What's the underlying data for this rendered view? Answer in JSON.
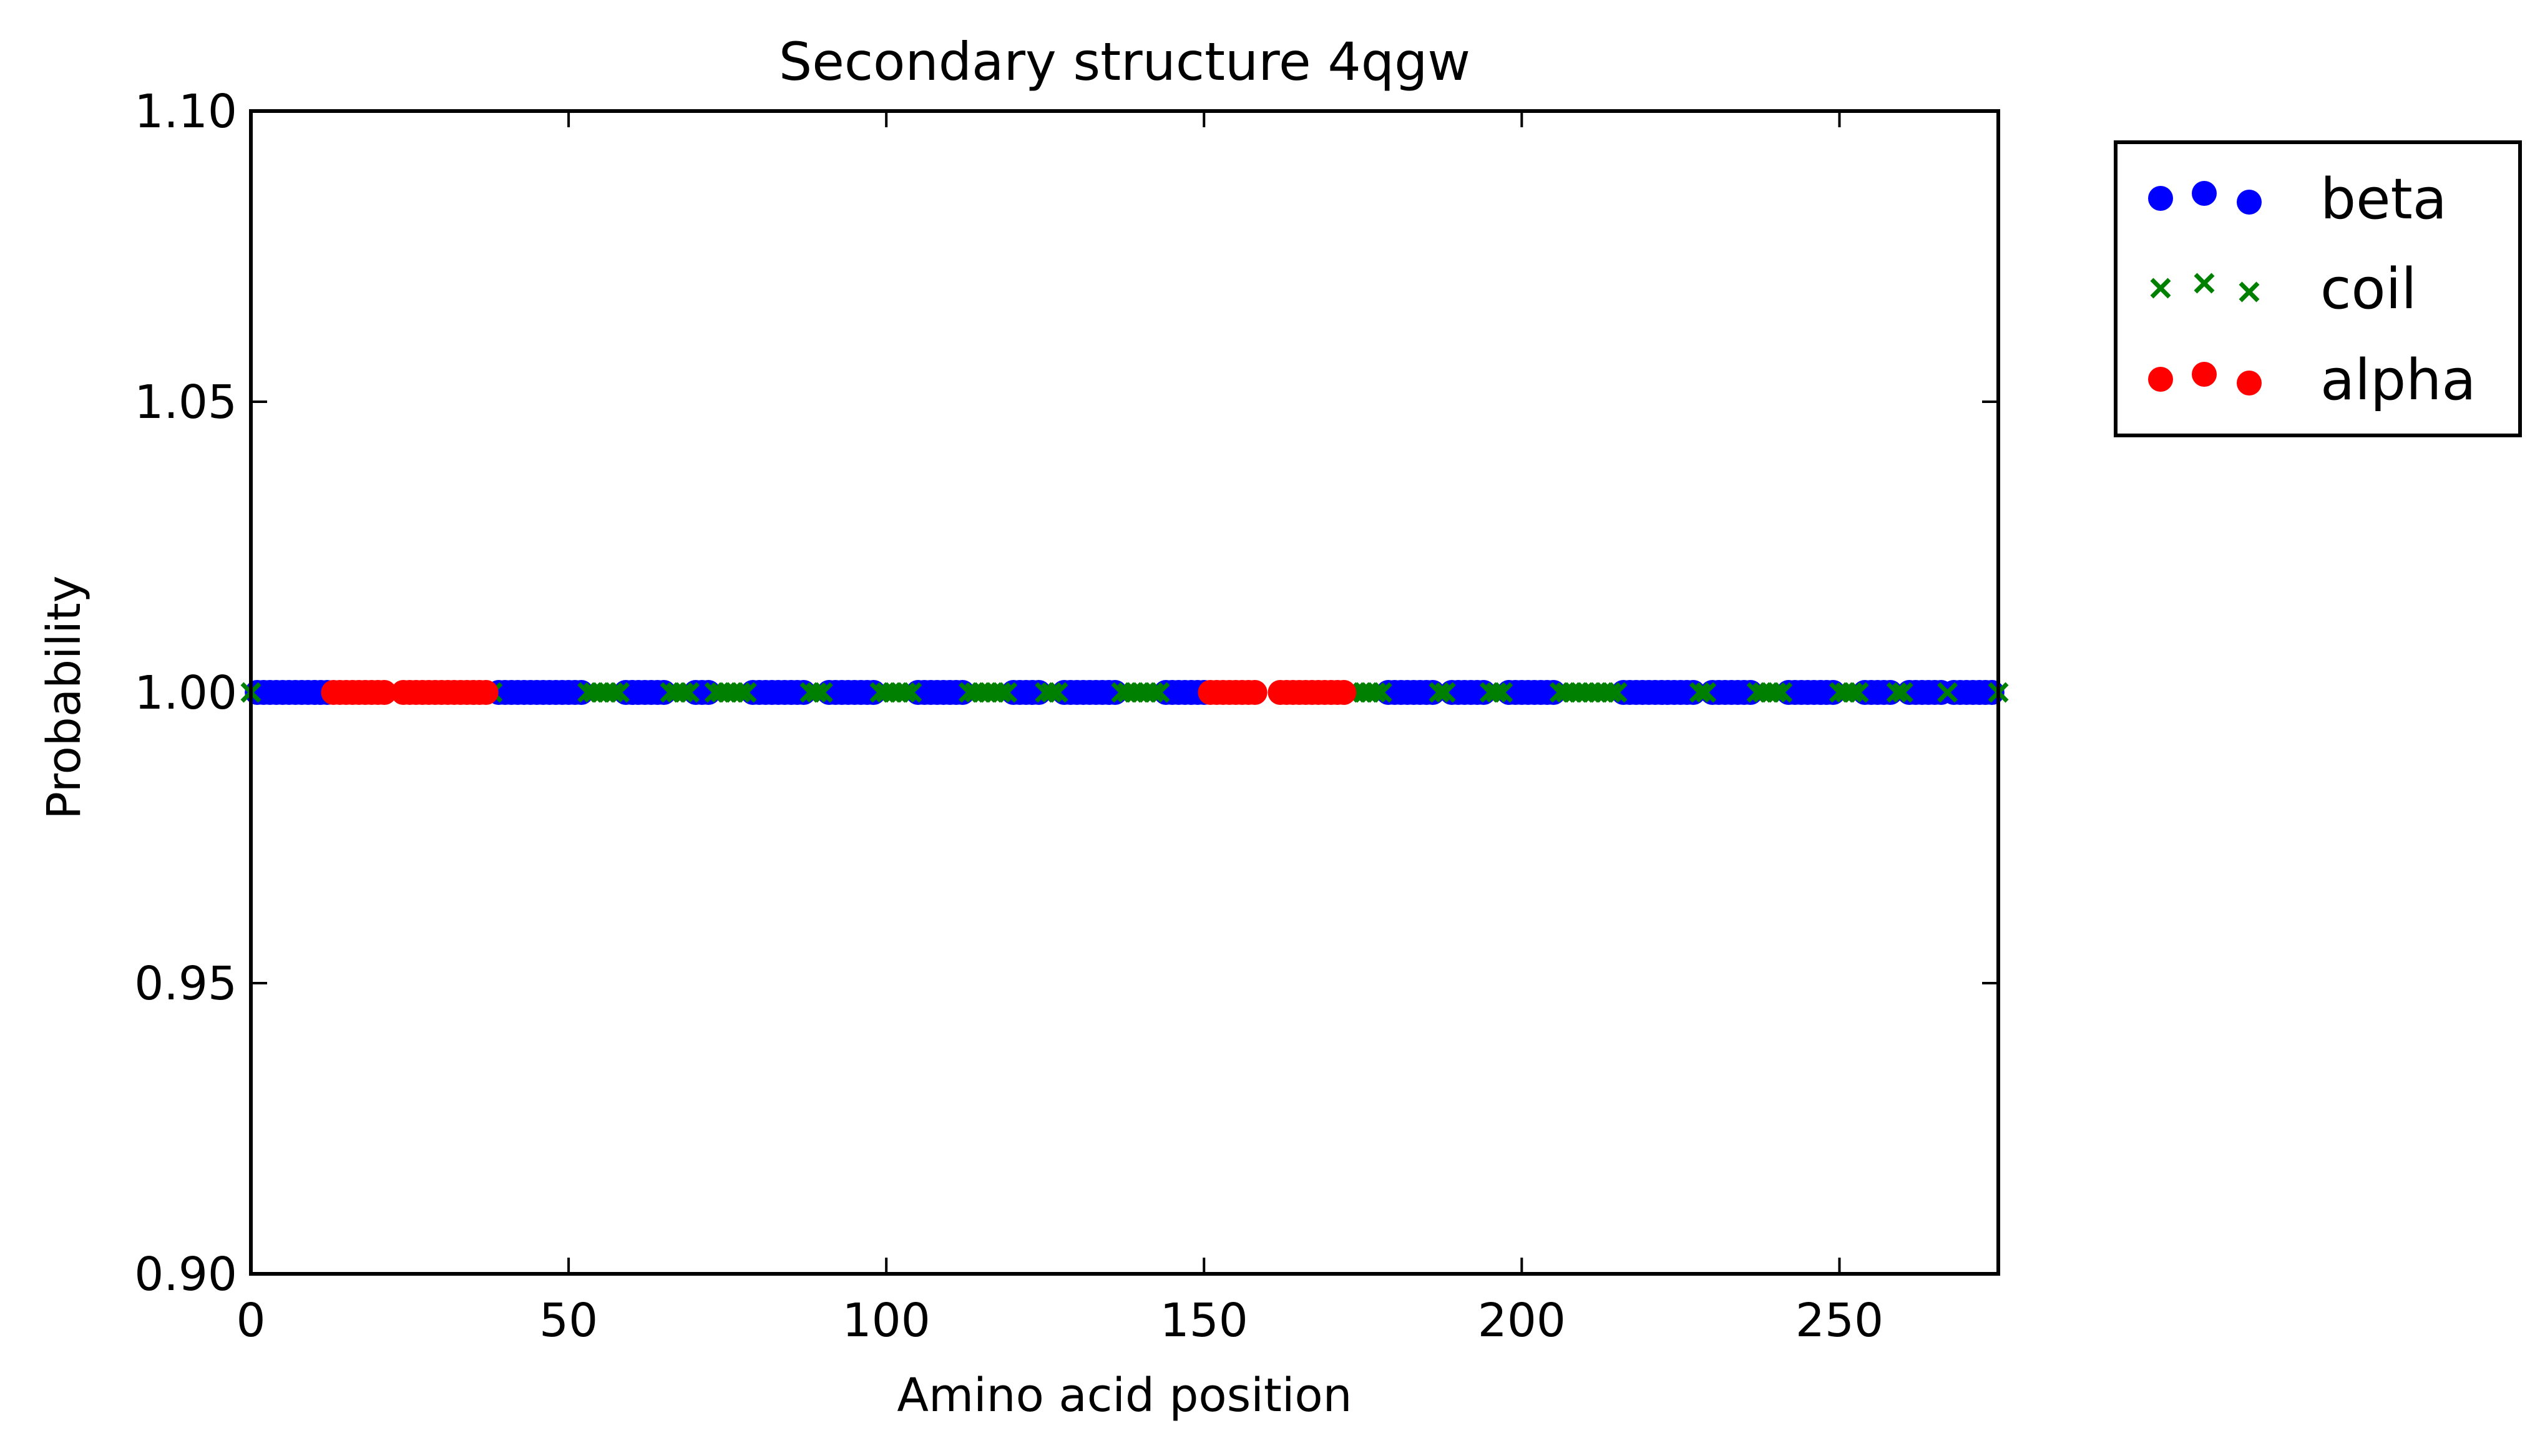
{
  "chart_data": {
    "type": "scatter",
    "title": "Secondary structure 4qgw",
    "xlabel": "Amino acid position",
    "ylabel": "Probability",
    "xlim": [
      0,
      275
    ],
    "ylim": [
      0.9,
      1.1
    ],
    "xticks": [
      0,
      50,
      100,
      150,
      200,
      250
    ],
    "xtick_labels": [
      "0",
      "50",
      "100",
      "150",
      "200",
      "250"
    ],
    "yticks": [
      0.9,
      0.95,
      1.0,
      1.05,
      1.1
    ],
    "ytick_labels": [
      "0.90",
      "0.95",
      "1.00",
      "1.05",
      "1.10"
    ],
    "grid": false,
    "legend_position": "outside-top-right",
    "series": [
      {
        "name": "beta",
        "marker": "circle",
        "color": "#0000ff",
        "y": 1.0,
        "ranges": [
          [
            1,
            12
          ],
          [
            39,
            52
          ],
          [
            59,
            65
          ],
          [
            70,
            72
          ],
          [
            79,
            87
          ],
          [
            91,
            98
          ],
          [
            105,
            112
          ],
          [
            120,
            124
          ],
          [
            128,
            136
          ],
          [
            144,
            150
          ],
          [
            179,
            186
          ],
          [
            189,
            194
          ],
          [
            198,
            205
          ],
          [
            216,
            227
          ],
          [
            230,
            236
          ],
          [
            242,
            249
          ],
          [
            254,
            258
          ],
          [
            261,
            266
          ],
          [
            268,
            274
          ]
        ]
      },
      {
        "name": "coil",
        "marker": "x",
        "color": "#008000",
        "y": 1.0,
        "ranges": [
          [
            0,
            0
          ],
          [
            13,
            13
          ],
          [
            38,
            38
          ],
          [
            53,
            58
          ],
          [
            66,
            69
          ],
          [
            73,
            78
          ],
          [
            88,
            90
          ],
          [
            99,
            104
          ],
          [
            113,
            119
          ],
          [
            125,
            127
          ],
          [
            137,
            143
          ],
          [
            151,
            152
          ],
          [
            173,
            178
          ],
          [
            187,
            188
          ],
          [
            195,
            197
          ],
          [
            206,
            215
          ],
          [
            228,
            229
          ],
          [
            237,
            241
          ],
          [
            250,
            253
          ],
          [
            259,
            260
          ],
          [
            267,
            267
          ],
          [
            275,
            275
          ]
        ]
      },
      {
        "name": "alpha",
        "marker": "circle",
        "color": "#ff0000",
        "y": 1.0,
        "ranges": [
          [
            13,
            21
          ],
          [
            24,
            32
          ],
          [
            33,
            37
          ],
          [
            151,
            158
          ],
          [
            162,
            172
          ]
        ]
      }
    ]
  }
}
